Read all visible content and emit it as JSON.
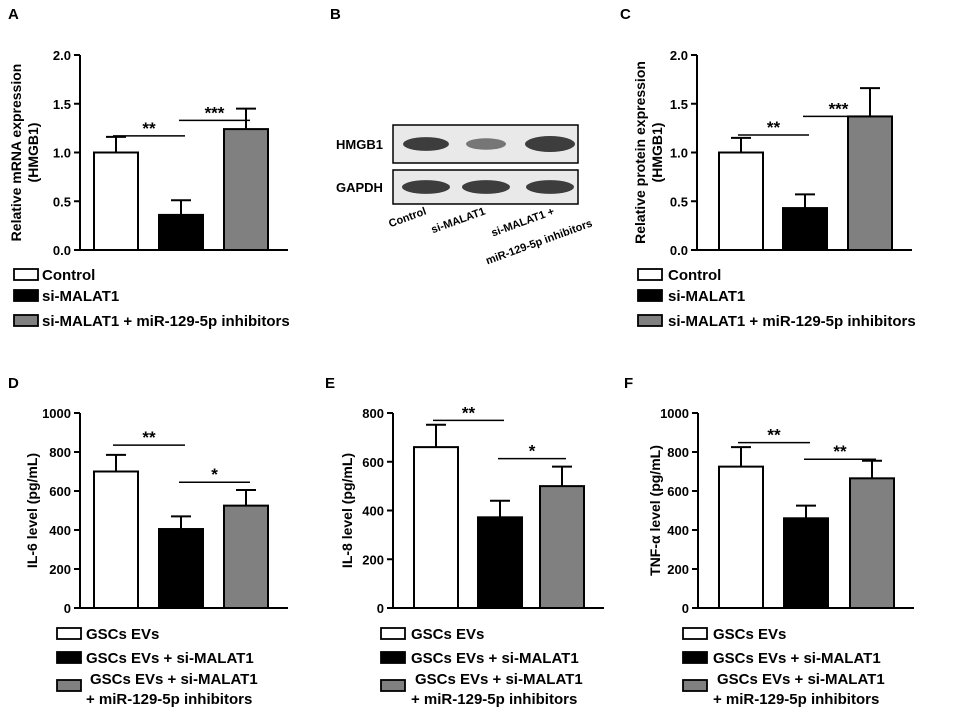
{
  "panels": {
    "A": {
      "letter": "A",
      "ylabel_lines": [
        "Relative mRNA expression",
        "(HMGB1)"
      ],
      "legend": [
        "Control",
        "si-MALAT1",
        "si-MALAT1 + miR-129-5p inhibitors"
      ],
      "colors": [
        "#ffffff",
        "#000000",
        "#808080"
      ],
      "significance": [
        {
          "from": 0,
          "to": 1,
          "label": "**",
          "y": 1.17
        },
        {
          "from": 1,
          "to": 2,
          "label": "***",
          "y": 1.33
        }
      ]
    },
    "B": {
      "letter": "B",
      "blots": [
        "HMGB1",
        "GAPDH"
      ],
      "lanes": [
        "Control",
        "si-MALAT1",
        "si-MALAT1 +",
        "miR-129-5p inhibitors"
      ]
    },
    "C": {
      "letter": "C",
      "ylabel_lines": [
        "Relative protein expression",
        "(HMGB1)"
      ],
      "legend": [
        "Control",
        "si-MALAT1",
        "si-MALAT1 + miR-129-5p inhibitors"
      ],
      "colors": [
        "#ffffff",
        "#000000",
        "#808080"
      ],
      "significance": [
        {
          "from": 0,
          "to": 1,
          "label": "**",
          "y": 1.18
        },
        {
          "from": 1,
          "to": 2,
          "label": "***",
          "y": 1.37
        }
      ]
    },
    "D": {
      "letter": "D",
      "ylabel_lines": [
        "IL-6 level (pg/mL)"
      ],
      "legend": [
        "GSCs EVs",
        "GSCs EVs + si-MALAT1",
        "GSCs EVs + si-MALAT1",
        "+ miR-129-5p inhibitors"
      ],
      "colors": [
        "#ffffff",
        "#000000",
        "#808080"
      ],
      "significance": [
        {
          "from": 0,
          "to": 1,
          "label": "**",
          "y": 835
        },
        {
          "from": 1,
          "to": 2,
          "label": "*",
          "y": 645
        }
      ]
    },
    "E": {
      "letter": "E",
      "ylabel_lines": [
        "IL-8 level (pg/mL)"
      ],
      "legend": [
        "GSCs EVs",
        "GSCs EVs + si-MALAT1",
        "GSCs EVs + si-MALAT1",
        "+ miR-129-5p inhibitors"
      ],
      "colors": [
        "#ffffff",
        "#000000",
        "#808080"
      ],
      "significance": [
        {
          "from": 0,
          "to": 1,
          "label": "**",
          "y": 770
        },
        {
          "from": 1,
          "to": 2,
          "label": "*",
          "y": 613
        }
      ]
    },
    "F": {
      "letter": "F",
      "ylabel_lines": [
        "TNF-α level (pg/mL)"
      ],
      "legend": [
        "GSCs EVs",
        "GSCs EVs + si-MALAT1",
        "GSCs EVs + si-MALAT1",
        "+ miR-129-5p inhibitors"
      ],
      "colors": [
        "#ffffff",
        "#000000",
        "#808080"
      ],
      "significance": [
        {
          "from": 0,
          "to": 1,
          "label": "**",
          "y": 848
        },
        {
          "from": 1,
          "to": 2,
          "label": "**",
          "y": 763
        }
      ]
    }
  },
  "chart_data": [
    {
      "panel": "A",
      "type": "bar",
      "categories": [
        "Control",
        "si-MALAT1",
        "si-MALAT1 + miR-129-5p inhibitors"
      ],
      "values": [
        1.0,
        0.36,
        1.24
      ],
      "errors": [
        0.16,
        0.15,
        0.21
      ],
      "ylim": [
        0,
        2.0
      ],
      "yticks": [
        0.0,
        0.5,
        1.0,
        1.5,
        2.0
      ],
      "yticklabels": [
        "0.0",
        "0.5",
        "1.0",
        "1.5",
        "2.0"
      ],
      "ylabel": "Relative mRNA expression (HMGB1)"
    },
    {
      "panel": "C",
      "type": "bar",
      "categories": [
        "Control",
        "si-MALAT1",
        "si-MALAT1 + miR-129-5p inhibitors"
      ],
      "values": [
        1.0,
        0.43,
        1.37
      ],
      "errors": [
        0.15,
        0.14,
        0.29
      ],
      "ylim": [
        0,
        2.0
      ],
      "yticks": [
        0.0,
        0.5,
        1.0,
        1.5,
        2.0
      ],
      "yticklabels": [
        "0.0",
        "0.5",
        "1.0",
        "1.5",
        "2.0"
      ],
      "ylabel": "Relative protein expression (HMGB1)"
    },
    {
      "panel": "D",
      "type": "bar",
      "categories": [
        "GSCs EVs",
        "GSCs EVs + si-MALAT1",
        "GSCs EVs + si-MALAT1 + miR-129-5p inhibitors"
      ],
      "values": [
        700,
        405,
        525
      ],
      "errors": [
        85,
        65,
        80
      ],
      "ylim": [
        0,
        1000
      ],
      "yticks": [
        0,
        200,
        400,
        600,
        800,
        1000
      ],
      "yticklabels": [
        "0",
        "200",
        "400",
        "600",
        "800",
        "1000"
      ],
      "ylabel": "IL-6 level (pg/mL)"
    },
    {
      "panel": "E",
      "type": "bar",
      "categories": [
        "GSCs EVs",
        "GSCs EVs + si-MALAT1",
        "GSCs EVs + si-MALAT1 + miR-129-5p inhibitors"
      ],
      "values": [
        660,
        372,
        500
      ],
      "errors": [
        92,
        68,
        80
      ],
      "ylim": [
        0,
        800
      ],
      "yticks": [
        0,
        200,
        400,
        600,
        800
      ],
      "yticklabels": [
        "0",
        "200",
        "400",
        "600",
        "800"
      ],
      "ylabel": "IL-8 level (pg/mL)"
    },
    {
      "panel": "F",
      "type": "bar",
      "categories": [
        "GSCs EVs",
        "GSCs EVs + si-MALAT1",
        "GSCs EVs + si-MALAT1 + miR-129-5p inhibitors"
      ],
      "values": [
        725,
        460,
        665
      ],
      "errors": [
        100,
        65,
        90
      ],
      "ylim": [
        0,
        1000
      ],
      "yticks": [
        0,
        200,
        400,
        600,
        800,
        1000
      ],
      "yticklabels": [
        "0",
        "200",
        "400",
        "600",
        "800",
        "1000"
      ],
      "ylabel": "TNF-α level (pg/mL)"
    }
  ]
}
